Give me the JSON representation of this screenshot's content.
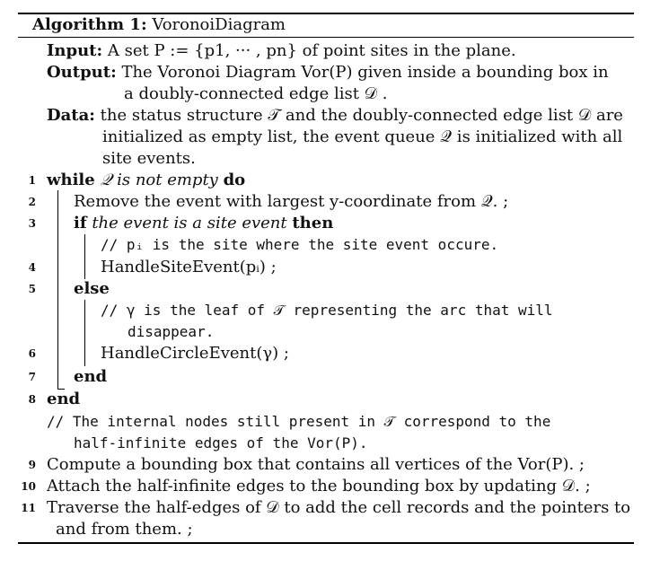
{
  "algorithm": {
    "caption_label": "Algorithm 1:",
    "caption_name": "VoronoiDiagram",
    "input_label": "Input:",
    "input_text": "A set P := {p1, ··· , pn} of point sites in the plane.",
    "output_label": "Output:",
    "output_text_1": "The Voronoi Diagram Vor(P) given inside a bounding box in",
    "output_text_2": "a doubly-connected edge list 𝒟 .",
    "data_label": "Data:",
    "data_text_1": "the status structure 𝒯 and the doubly-connected edge list 𝒟 are",
    "data_text_2": "initialized as empty list, the event queue 𝒬 is initialized with all",
    "data_text_3": "site events.",
    "lines": [
      {
        "num": "1",
        "kw": "while",
        "cond": "𝒬 is not empty",
        "kw2": "do"
      },
      {
        "num": "2",
        "text": "Remove the event with largest y-coordinate from 𝒬. ;"
      },
      {
        "num": "3",
        "kw": "if",
        "cond": "the event is a site event",
        "kw2": "then"
      },
      {
        "num": "",
        "comment": "// pᵢ is the site where the site event occure."
      },
      {
        "num": "4",
        "text": "HandleSiteEvent(pᵢ) ;"
      },
      {
        "num": "5",
        "kw": "else"
      },
      {
        "num": "",
        "comment": "// γ is the leaf of 𝒯 representing the arc that will"
      },
      {
        "num": "",
        "comment": "disappear."
      },
      {
        "num": "6",
        "text": "HandleCircleEvent(γ) ;"
      },
      {
        "num": "7",
        "kw": "end"
      },
      {
        "num": "8",
        "kw": "end"
      },
      {
        "num": "",
        "comment": "// The internal nodes still present in 𝒯 correspond to the"
      },
      {
        "num": "",
        "comment": "half-infinite edges of the Vor(P)."
      },
      {
        "num": "9",
        "text": "Compute a bounding box that contains all vertices of the Vor(P). ;"
      },
      {
        "num": "10",
        "text": "Attach the half-infinite edges to the bounding box by updating 𝒟. ;"
      },
      {
        "num": "11",
        "text": "Traverse the half-edges of 𝒟 to add the cell records and the pointers to"
      },
      {
        "num": "",
        "text": "and from them. ;"
      }
    ]
  }
}
